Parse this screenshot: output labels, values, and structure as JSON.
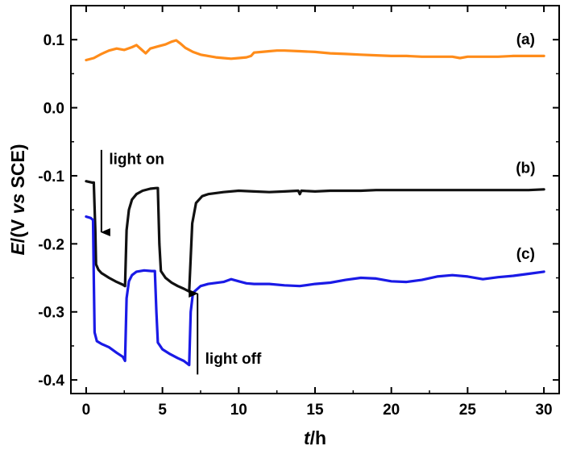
{
  "chart_data": {
    "type": "line",
    "xlabel_var": "t",
    "xlabel_unit": "/h",
    "ylabel_var": "E",
    "ylabel_pre": "/(V ",
    "ylabel_vs": "vs",
    "ylabel_post": " SCE)",
    "xlim": [
      -1,
      31
    ],
    "ylim": [
      -0.42,
      0.15
    ],
    "xticks": [
      0,
      5,
      10,
      15,
      20,
      25,
      30
    ],
    "yticks": [
      0.1,
      0.0,
      -0.1,
      -0.2,
      -0.3,
      -0.4
    ],
    "ytick_labels": [
      "0.1",
      "0.0",
      "-0.1",
      "-0.2",
      "-0.3",
      "-0.4"
    ],
    "grid": false,
    "series": [
      {
        "name": "(a)",
        "color": "#ff8c1a",
        "points": [
          [
            0,
            0.07
          ],
          [
            0.5,
            0.073
          ],
          [
            1,
            0.079
          ],
          [
            1.5,
            0.084
          ],
          [
            2,
            0.087
          ],
          [
            2.5,
            0.085
          ],
          [
            3,
            0.089
          ],
          [
            3.3,
            0.092
          ],
          [
            3.6,
            0.086
          ],
          [
            3.9,
            0.08
          ],
          [
            4.2,
            0.087
          ],
          [
            4.7,
            0.09
          ],
          [
            5.2,
            0.093
          ],
          [
            5.6,
            0.097
          ],
          [
            5.9,
            0.099
          ],
          [
            6.2,
            0.094
          ],
          [
            6.5,
            0.088
          ],
          [
            7,
            0.082
          ],
          [
            7.5,
            0.078
          ],
          [
            8,
            0.076
          ],
          [
            8.5,
            0.074
          ],
          [
            9,
            0.073
          ],
          [
            9.5,
            0.072
          ],
          [
            10,
            0.073
          ],
          [
            10.5,
            0.074
          ],
          [
            10.8,
            0.076
          ],
          [
            11,
            0.081
          ],
          [
            11.5,
            0.082
          ],
          [
            12,
            0.083
          ],
          [
            12.5,
            0.084
          ],
          [
            13,
            0.084
          ],
          [
            14,
            0.083
          ],
          [
            15,
            0.082
          ],
          [
            16,
            0.08
          ],
          [
            17,
            0.079
          ],
          [
            18,
            0.078
          ],
          [
            19,
            0.077
          ],
          [
            20,
            0.076
          ],
          [
            21,
            0.076
          ],
          [
            22,
            0.075
          ],
          [
            23,
            0.075
          ],
          [
            24,
            0.075
          ],
          [
            24.5,
            0.073
          ],
          [
            25,
            0.075
          ],
          [
            26,
            0.075
          ],
          [
            27,
            0.075
          ],
          [
            28,
            0.076
          ],
          [
            29,
            0.076
          ],
          [
            30,
            0.076
          ]
        ]
      },
      {
        "name": "(b)",
        "color": "#111111",
        "points": [
          [
            0,
            -0.108
          ],
          [
            0.4,
            -0.11
          ],
          [
            0.5,
            -0.11
          ],
          [
            0.6,
            -0.18
          ],
          [
            0.65,
            -0.23
          ],
          [
            0.8,
            -0.238
          ],
          [
            1,
            -0.243
          ],
          [
            1.5,
            -0.25
          ],
          [
            2,
            -0.256
          ],
          [
            2.4,
            -0.26
          ],
          [
            2.55,
            -0.262
          ],
          [
            2.65,
            -0.18
          ],
          [
            2.8,
            -0.15
          ],
          [
            3,
            -0.135
          ],
          [
            3.3,
            -0.127
          ],
          [
            3.7,
            -0.122
          ],
          [
            4.2,
            -0.119
          ],
          [
            4.6,
            -0.118
          ],
          [
            4.7,
            -0.118
          ],
          [
            4.8,
            -0.2
          ],
          [
            4.9,
            -0.24
          ],
          [
            5.2,
            -0.25
          ],
          [
            5.6,
            -0.257
          ],
          [
            6,
            -0.262
          ],
          [
            6.4,
            -0.266
          ],
          [
            6.75,
            -0.27
          ],
          [
            6.85,
            -0.22
          ],
          [
            6.95,
            -0.17
          ],
          [
            7.2,
            -0.14
          ],
          [
            7.6,
            -0.13
          ],
          [
            8,
            -0.127
          ],
          [
            9,
            -0.124
          ],
          [
            10,
            -0.122
          ],
          [
            11,
            -0.123
          ],
          [
            12,
            -0.124
          ],
          [
            13,
            -0.123
          ],
          [
            13.9,
            -0.122
          ],
          [
            14,
            -0.127
          ],
          [
            14.1,
            -0.122
          ],
          [
            15,
            -0.123
          ],
          [
            16,
            -0.122
          ],
          [
            17,
            -0.122
          ],
          [
            18,
            -0.122
          ],
          [
            19,
            -0.121
          ],
          [
            20,
            -0.121
          ],
          [
            21,
            -0.121
          ],
          [
            22,
            -0.121
          ],
          [
            23,
            -0.121
          ],
          [
            24,
            -0.121
          ],
          [
            25,
            -0.121
          ],
          [
            26,
            -0.121
          ],
          [
            27,
            -0.121
          ],
          [
            28,
            -0.121
          ],
          [
            29,
            -0.121
          ],
          [
            30,
            -0.12
          ]
        ]
      },
      {
        "name": "(c)",
        "color": "#1a1ae6",
        "points": [
          [
            0,
            -0.16
          ],
          [
            0.3,
            -0.162
          ],
          [
            0.45,
            -0.165
          ],
          [
            0.5,
            -0.25
          ],
          [
            0.55,
            -0.33
          ],
          [
            0.7,
            -0.343
          ],
          [
            1,
            -0.347
          ],
          [
            1.5,
            -0.352
          ],
          [
            2,
            -0.36
          ],
          [
            2.4,
            -0.366
          ],
          [
            2.55,
            -0.372
          ],
          [
            2.65,
            -0.28
          ],
          [
            2.8,
            -0.255
          ],
          [
            3,
            -0.246
          ],
          [
            3.3,
            -0.241
          ],
          [
            3.8,
            -0.239
          ],
          [
            4.3,
            -0.24
          ],
          [
            4.5,
            -0.24
          ],
          [
            4.6,
            -0.3
          ],
          [
            4.7,
            -0.345
          ],
          [
            5,
            -0.355
          ],
          [
            5.5,
            -0.362
          ],
          [
            6,
            -0.368
          ],
          [
            6.4,
            -0.372
          ],
          [
            6.75,
            -0.378
          ],
          [
            6.85,
            -0.3
          ],
          [
            7,
            -0.272
          ],
          [
            7.5,
            -0.262
          ],
          [
            8,
            -0.259
          ],
          [
            9,
            -0.256
          ],
          [
            9.5,
            -0.252
          ],
          [
            10,
            -0.255
          ],
          [
            10.5,
            -0.258
          ],
          [
            11,
            -0.259
          ],
          [
            12,
            -0.259
          ],
          [
            13,
            -0.261
          ],
          [
            14,
            -0.262
          ],
          [
            15,
            -0.259
          ],
          [
            16,
            -0.257
          ],
          [
            17,
            -0.253
          ],
          [
            18,
            -0.25
          ],
          [
            19,
            -0.251
          ],
          [
            20,
            -0.255
          ],
          [
            21,
            -0.256
          ],
          [
            22,
            -0.253
          ],
          [
            23,
            -0.248
          ],
          [
            24,
            -0.246
          ],
          [
            25,
            -0.248
          ],
          [
            26,
            -0.252
          ],
          [
            27,
            -0.249
          ],
          [
            28,
            -0.247
          ],
          [
            29,
            -0.244
          ],
          [
            30,
            -0.241
          ]
        ]
      }
    ],
    "series_labels": [
      {
        "text": "(a)",
        "x": 28.8,
        "y": 0.093
      },
      {
        "text": "(b)",
        "x": 28.8,
        "y": -0.096
      },
      {
        "text": "(c)",
        "x": 28.8,
        "y": -0.222
      }
    ],
    "annotations": [
      {
        "text": "light on",
        "x": 1.5,
        "y": -0.083
      },
      {
        "text": "light off",
        "x": 7.8,
        "y": -0.376
      }
    ],
    "arrows": [
      {
        "name": "light-on-arrow",
        "x": 1.0,
        "y_start": -0.062,
        "y_end": -0.183
      },
      {
        "name": "light-off-arrow",
        "x": 7.3,
        "y_start": -0.392,
        "y_end": -0.273
      }
    ]
  }
}
